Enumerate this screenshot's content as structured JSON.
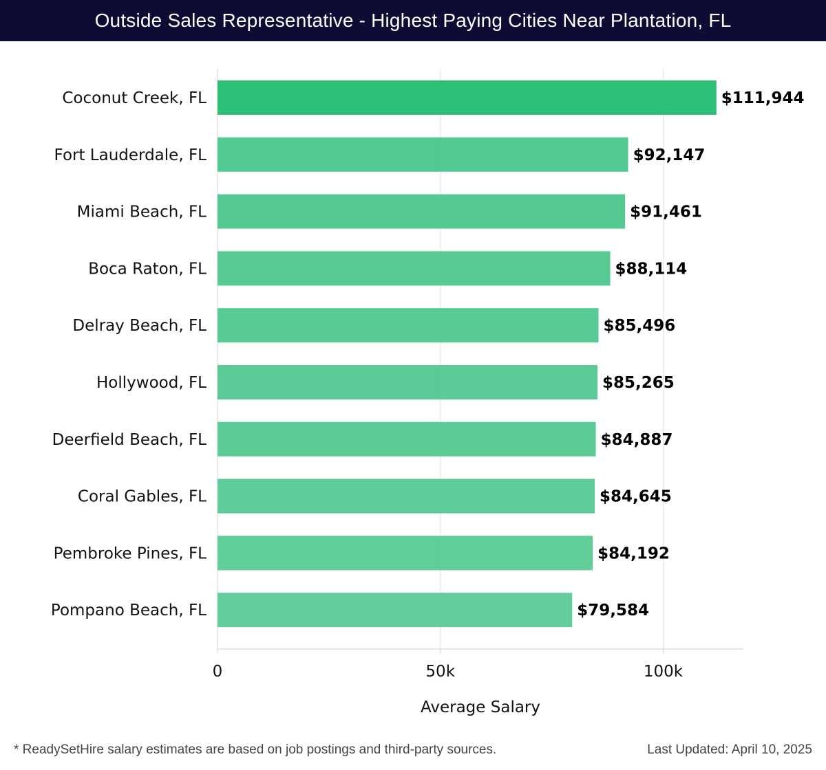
{
  "header": {
    "title": "Outside Sales Representative - Highest Paying Cities Near Plantation, FL"
  },
  "chart_data": {
    "type": "bar",
    "orientation": "horizontal",
    "title": "Outside Sales Representative - Highest Paying Cities Near Plantation, FL",
    "xlabel": "Average Salary",
    "ylabel": "",
    "xlim": [
      0,
      118000
    ],
    "x_ticks": [
      0,
      50000,
      100000
    ],
    "x_tick_labels": [
      "0",
      "50k",
      "100k"
    ],
    "grid": true,
    "categories": [
      "Coconut Creek, FL",
      "Fort Lauderdale, FL",
      "Miami Beach, FL",
      "Boca Raton, FL",
      "Delray Beach, FL",
      "Hollywood, FL",
      "Deerfield Beach, FL",
      "Coral Gables, FL",
      "Pembroke Pines, FL",
      "Pompano Beach, FL"
    ],
    "values": [
      111944,
      92147,
      91461,
      88114,
      85496,
      85265,
      84887,
      84645,
      84192,
      79584
    ],
    "value_labels": [
      "$111,944",
      "$92,147",
      "$91,461",
      "$88,114",
      "$85,496",
      "$85,265",
      "$84,887",
      "$84,645",
      "$84,192",
      "$79,584"
    ],
    "colors": {
      "top_bar": "#2dbe78",
      "bar": "#4cc78d",
      "grid": "#e3e3e3",
      "axis": "#d0d0d0"
    }
  },
  "footer": {
    "note": "* ReadySetHire salary estimates are based on job postings and third-party sources.",
    "updated": "Last Updated: April 10, 2025"
  }
}
